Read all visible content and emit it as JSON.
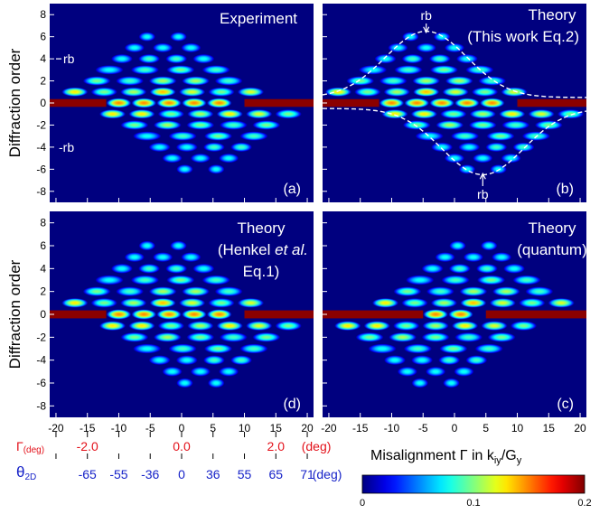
{
  "chart_data": [
    {
      "type": "heatmap",
      "panel": "a",
      "title": "Experiment",
      "ylabel": "Diffraction order",
      "xlim": [
        -21,
        21
      ],
      "ylim": [
        -9,
        9
      ],
      "annotations": [
        "rb",
        "-rb"
      ],
      "profile": "experiment"
    },
    {
      "type": "heatmap",
      "panel": "b",
      "title": "Theory",
      "subtitle": "(This work Eq.2)",
      "xlim": [
        -21,
        21
      ],
      "ylim": [
        -9,
        9
      ],
      "annotations": [
        "rb",
        "rb"
      ],
      "envelope": "dashed",
      "profile": "theory"
    },
    {
      "type": "heatmap",
      "panel": "d",
      "title": "Theory",
      "subtitle_parts": [
        "(Henkel ",
        "et al.",
        ""
      ],
      "subtitle2": "Eq.1)",
      "ylabel": "Diffraction order",
      "xlim": [
        -21,
        21
      ],
      "ylim": [
        -9,
        9
      ],
      "profile": "henkel"
    },
    {
      "type": "heatmap",
      "panel": "c",
      "title": "Theory",
      "subtitle": "(quantum)",
      "xlim": [
        -21,
        21
      ],
      "ylim": [
        -9,
        9
      ],
      "profile": "quantum"
    }
  ],
  "axes": {
    "yticks": [
      8,
      6,
      4,
      2,
      0,
      -2,
      -4,
      -6,
      -8
    ],
    "xticks": [
      -20,
      -15,
      -10,
      -5,
      0,
      5,
      10,
      15,
      20
    ]
  },
  "secondary_axes": {
    "gamma": {
      "label": "Γ",
      "label_sub": "(deg)",
      "ticks": [
        {
          "x": -15,
          "label": "-2.0"
        },
        {
          "x": 0,
          "label": "0.0"
        },
        {
          "x": 15,
          "label": "2.0"
        }
      ],
      "unit": "(deg)",
      "color": "#e3111a"
    },
    "theta": {
      "label": "θ",
      "label_sub": "2D",
      "ticks": [
        {
          "x": -20,
          "label": ""
        },
        {
          "x": -15,
          "label": "-65"
        },
        {
          "x": -10,
          "label": "-55"
        },
        {
          "x": -5,
          "label": "-36"
        },
        {
          "x": 0,
          "label": "0"
        },
        {
          "x": 5,
          "label": "36"
        },
        {
          "x": 10,
          "label": "55"
        },
        {
          "x": 15,
          "label": "65"
        },
        {
          "x": 20,
          "label": "71"
        }
      ],
      "unit": "(deg)",
      "color": "#1622c8"
    }
  },
  "colorbar": {
    "label": "Misalignment Γ in k",
    "label_sub1": "iy",
    "label_mid": "/G",
    "label_sub2": "y",
    "min": 0,
    "max": 0.2,
    "ticks": [
      {
        "v": 0,
        "label": "0"
      },
      {
        "v": 0.1,
        "label": "0.1"
      },
      {
        "v": 0.2,
        "label": "0.2"
      }
    ],
    "colormap": "jet"
  }
}
